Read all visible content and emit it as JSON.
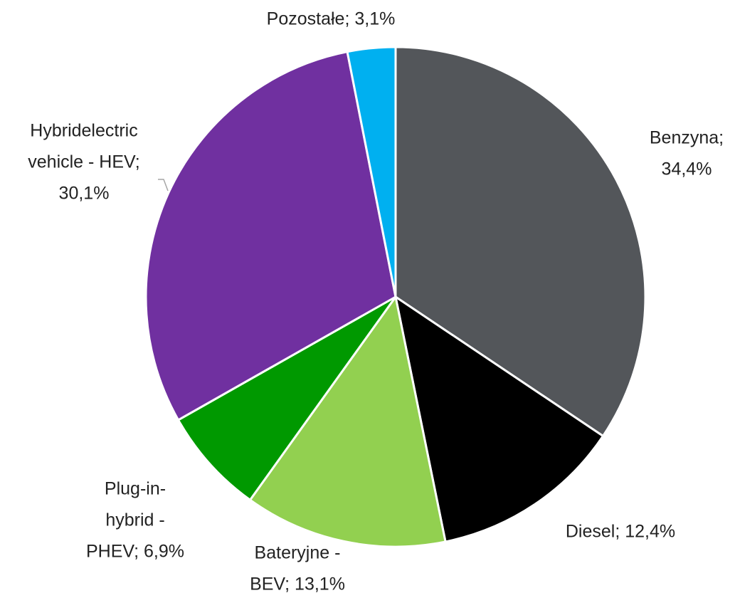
{
  "chart_data": {
    "type": "pie",
    "values": [
      34.4,
      12.4,
      13.1,
      6.9,
      30.1,
      3.1
    ],
    "value_labels": [
      [
        "Benzyna;",
        "34,4%"
      ],
      [
        "Diesel; 12,4%"
      ],
      [
        "Bateryjne -",
        "BEV; 13,1%"
      ],
      [
        "Plug-in-",
        "hybrid -",
        "PHEV; 6,9%"
      ],
      [
        "Hybridelectric",
        "vehicle - HEV;",
        "30,1%"
      ],
      [
        "Pozostałe; 3,1%"
      ]
    ],
    "colors": [
      "#53565a",
      "#000000",
      "#92d050",
      "#009900",
      "#7030a0",
      "#00b0f0"
    ]
  }
}
